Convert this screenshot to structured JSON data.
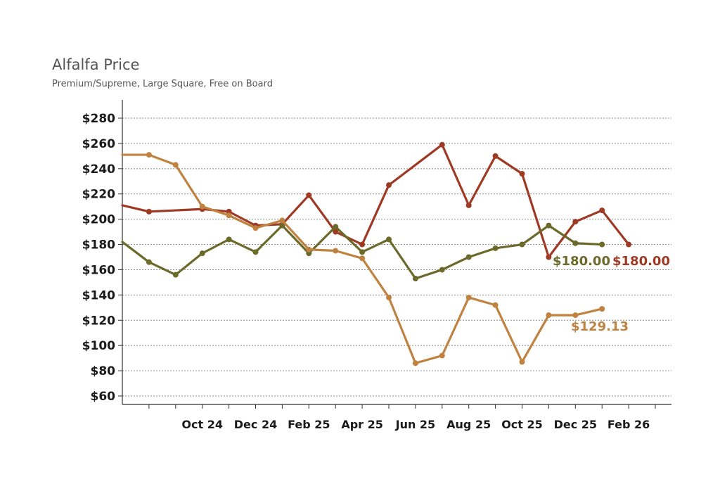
{
  "chart_data": {
    "type": "line",
    "title": "Alfalfa Price",
    "subtitle": "Premium/Supreme, Large Square, Free on Board",
    "xlabel": "",
    "ylabel": "",
    "ylim": [
      60,
      280
    ],
    "yticks": [
      60,
      80,
      100,
      120,
      140,
      160,
      180,
      200,
      220,
      240,
      260,
      280
    ],
    "ytick_labels": [
      "$60",
      "$80",
      "$100",
      "$120",
      "$140",
      "$160",
      "$180",
      "$200",
      "$220",
      "$240",
      "$260",
      "$280"
    ],
    "x_months": [
      "Aug 24",
      "Sep 24",
      "Oct 24",
      "Nov 24",
      "Dec 24",
      "Jan 25",
      "Feb 25",
      "Mar 25",
      "Apr 25",
      "May 25",
      "Jun 25",
      "Jul 25",
      "Aug 25",
      "Sep 25",
      "Oct 25",
      "Nov 25",
      "Dec 25",
      "Jan 26",
      "Feb 26",
      "Mar 26"
    ],
    "xtick_labels": [
      "Oct 24",
      "Dec 24",
      "Feb 25",
      "Apr 25",
      "Jun 25",
      "Aug 25",
      "Oct 25",
      "Dec 25",
      "Feb 26"
    ],
    "grid": "horizontal dotted",
    "series": [
      {
        "color": "#9e3a24",
        "end_label": "$180.00",
        "points": [
          [
            "Jul 24",
            211
          ],
          [
            "Aug 24",
            206
          ],
          [
            "Oct 24",
            208
          ],
          [
            "Nov 24",
            206
          ],
          [
            "Dec 24",
            195
          ],
          [
            "Jan 25",
            196
          ],
          [
            "Feb 25",
            219
          ],
          [
            "Mar 25",
            190
          ],
          [
            "Apr 25",
            180
          ],
          [
            "May 25",
            227
          ],
          [
            "Jul 25",
            259
          ],
          [
            "Aug 25",
            211
          ],
          [
            "Sep 25",
            250
          ],
          [
            "Oct 25",
            236
          ],
          [
            "Nov 25",
            170
          ],
          [
            "Dec 25",
            198
          ],
          [
            "Jan 26",
            207
          ],
          [
            "Feb 26",
            180
          ]
        ]
      },
      {
        "color": "#6b6a2a",
        "end_label": "$180.00",
        "points": [
          [
            "Jul 24",
            182
          ],
          [
            "Aug 24",
            166
          ],
          [
            "Sep 24",
            156
          ],
          [
            "Oct 24",
            173
          ],
          [
            "Nov 24",
            184
          ],
          [
            "Dec 24",
            174
          ],
          [
            "Jan 25",
            195
          ],
          [
            "Feb 25",
            173
          ],
          [
            "Mar 25",
            194
          ],
          [
            "Apr 25",
            174
          ],
          [
            "May 25",
            184
          ],
          [
            "Jun 25",
            153
          ],
          [
            "Jul 25",
            160
          ],
          [
            "Aug 25",
            170
          ],
          [
            "Sep 25",
            177
          ],
          [
            "Oct 25",
            180
          ],
          [
            "Nov 25",
            195
          ],
          [
            "Dec 25",
            181
          ],
          [
            "Jan 26",
            180
          ]
        ]
      },
      {
        "color": "#bf8240",
        "end_label": "$129.13",
        "points": [
          [
            "Jul 24",
            251
          ],
          [
            "Aug 24",
            251
          ],
          [
            "Sep 24",
            243
          ],
          [
            "Oct 24",
            210
          ],
          [
            "Nov 24",
            203
          ],
          [
            "Dec 24",
            193
          ],
          [
            "Jan 25",
            199
          ],
          [
            "Feb 25",
            176
          ],
          [
            "Mar 25",
            175
          ],
          [
            "Apr 25",
            169
          ],
          [
            "May 25",
            138
          ],
          [
            "Jun 25",
            86
          ],
          [
            "Jul 25",
            92
          ],
          [
            "Aug 25",
            138
          ],
          [
            "Sep 25",
            132
          ],
          [
            "Oct 25",
            87
          ],
          [
            "Nov 25",
            124
          ],
          [
            "Dec 25",
            124
          ],
          [
            "Jan 26",
            129
          ]
        ]
      }
    ]
  }
}
